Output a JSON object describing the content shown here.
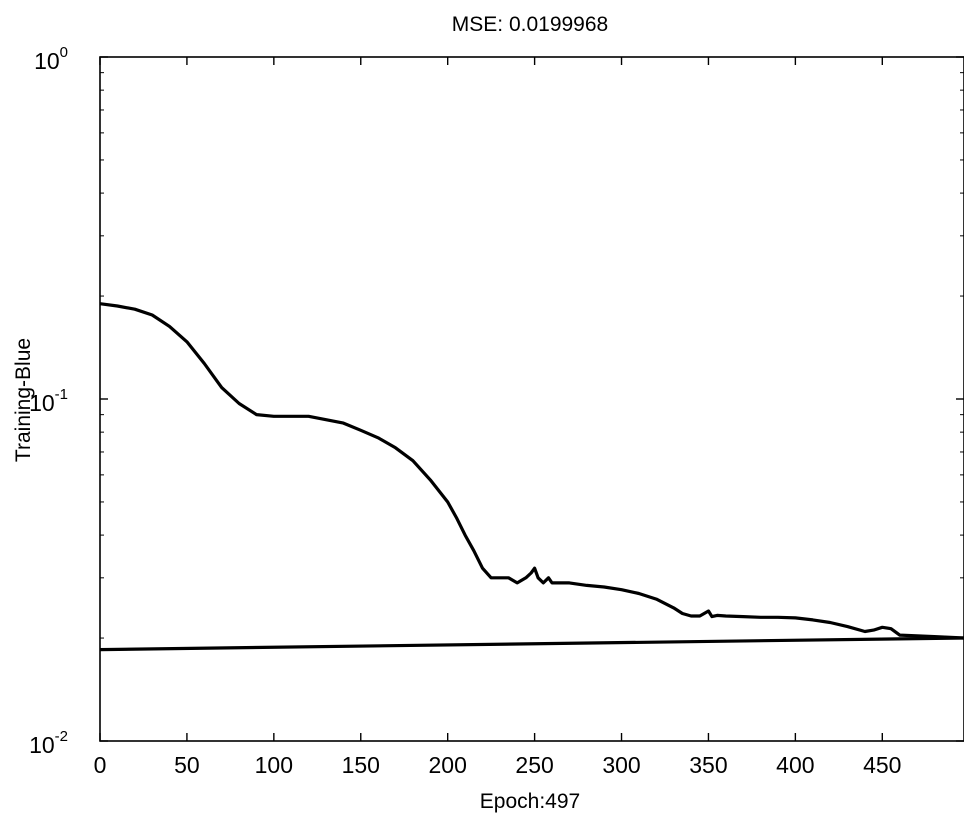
{
  "chart_data": {
    "type": "line",
    "title": "MSE:  0.0199968",
    "xlabel": "Epoch:497",
    "ylabel": "Training-Blue",
    "xlim": [
      0,
      497
    ],
    "ylim": [
      0.01,
      1
    ],
    "yscale": "log",
    "grid": false,
    "x_ticks": [
      {
        "value": 0,
        "label": "0"
      },
      {
        "value": 50,
        "label": "50"
      },
      {
        "value": 100,
        "label": "100"
      },
      {
        "value": 150,
        "label": "150"
      },
      {
        "value": 200,
        "label": "200"
      },
      {
        "value": 250,
        "label": "250"
      },
      {
        "value": 300,
        "label": "300"
      },
      {
        "value": 350,
        "label": "350"
      },
      {
        "value": 400,
        "label": "400"
      },
      {
        "value": 450,
        "label": "450"
      }
    ],
    "y_ticks": [
      {
        "value": 1,
        "base": "10",
        "exp": "0"
      },
      {
        "value": 0.1,
        "base": "10",
        "exp": "-1"
      },
      {
        "value": 0.01,
        "base": "10",
        "exp": "-2"
      }
    ],
    "series": [
      {
        "x": [
          0,
          10,
          20,
          30,
          40,
          50,
          60,
          70,
          80,
          90,
          100,
          110,
          120,
          130,
          140,
          150,
          160,
          170,
          180,
          190,
          200,
          205,
          210,
          215,
          220,
          225,
          230,
          235,
          240,
          245,
          248,
          250,
          252,
          255,
          258,
          260,
          265,
          270,
          280,
          290,
          300,
          310,
          320,
          330,
          335,
          340,
          345,
          350,
          352,
          355,
          360,
          370,
          380,
          390,
          400,
          410,
          420,
          430,
          440,
          445,
          450,
          455,
          460,
          470,
          480,
          497
        ],
        "y": [
          0.19,
          0.187,
          0.183,
          0.176,
          0.163,
          0.147,
          0.127,
          0.108,
          0.097,
          0.09,
          0.089,
          0.089,
          0.089,
          0.087,
          0.085,
          0.081,
          0.077,
          0.072,
          0.066,
          0.058,
          0.05,
          0.045,
          0.04,
          0.036,
          0.032,
          0.03,
          0.03,
          0.03,
          0.029,
          0.03,
          0.031,
          0.032,
          0.03,
          0.029,
          0.03,
          0.029,
          0.029,
          0.029,
          0.0285,
          0.0282,
          0.0277,
          0.027,
          0.026,
          0.0245,
          0.0236,
          0.0232,
          0.0232,
          0.024,
          0.0231,
          0.0233,
          0.0232,
          0.0231,
          0.023,
          0.023,
          0.0229,
          0.0226,
          0.0222,
          0.0216,
          0.0209,
          0.0211,
          0.0215,
          0.0213,
          0.0204,
          0.0203,
          0.0202,
          0.02
        ]
      },
      {
        "x": [
          0,
          497
        ],
        "y": [
          0.0185,
          0.02
        ]
      }
    ]
  }
}
